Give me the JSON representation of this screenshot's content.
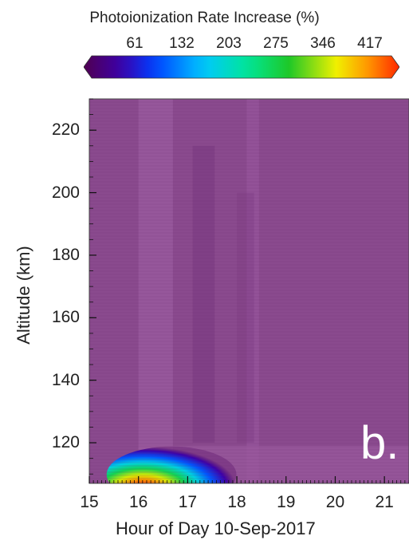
{
  "colorbar": {
    "title": "Photoionization Rate Increase (%)",
    "ticks": [
      "61",
      "132",
      "203",
      "275",
      "346",
      "417"
    ],
    "tick_values": [
      61,
      132,
      203,
      275,
      346,
      417
    ],
    "range": [
      0,
      480
    ]
  },
  "panel_label": "b.",
  "chart_data": {
    "type": "heatmap",
    "title": "",
    "xlabel": "Hour of Day 10-Sep-2017",
    "ylabel": "Altitude (km)",
    "xlim": [
      15,
      21.5
    ],
    "ylim": [
      107,
      230
    ],
    "x_ticks": [
      "15",
      "16",
      "17",
      "18",
      "19",
      "20",
      "21"
    ],
    "y_ticks": [
      "120",
      "140",
      "160",
      "180",
      "200",
      "220"
    ],
    "z_label": "Photoionization Rate Increase (%)",
    "background_value": 0,
    "features": [
      {
        "x": 16.35,
        "y": 110,
        "value": 470
      },
      {
        "x": 16.5,
        "y": 111,
        "value": 300
      },
      {
        "x": 17.2,
        "y": 110,
        "value": 60
      }
    ]
  }
}
